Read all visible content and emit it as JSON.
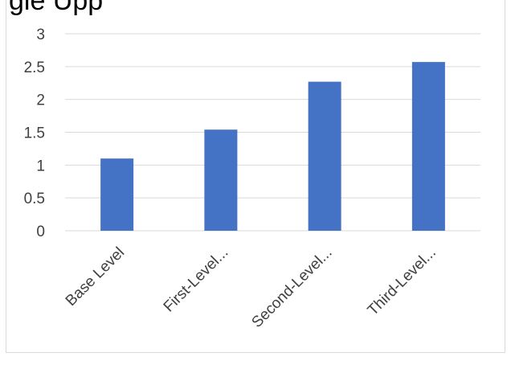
{
  "chart_data": {
    "type": "bar",
    "title": "gle Upp",
    "categories": [
      "Base Level",
      "First-Level...",
      "Second-Level...",
      "Third-Level..."
    ],
    "values": [
      1.1,
      1.54,
      2.27,
      2.57
    ],
    "ylim": [
      0,
      3
    ],
    "yticks": [
      "0",
      "0.5",
      "1",
      "1.5",
      "2",
      "2.5",
      "3"
    ],
    "xlabel": "",
    "ylabel": "",
    "grid": true,
    "legend": "none",
    "bar_color": "#4472c4",
    "grid_color": "#d9d9d9"
  }
}
